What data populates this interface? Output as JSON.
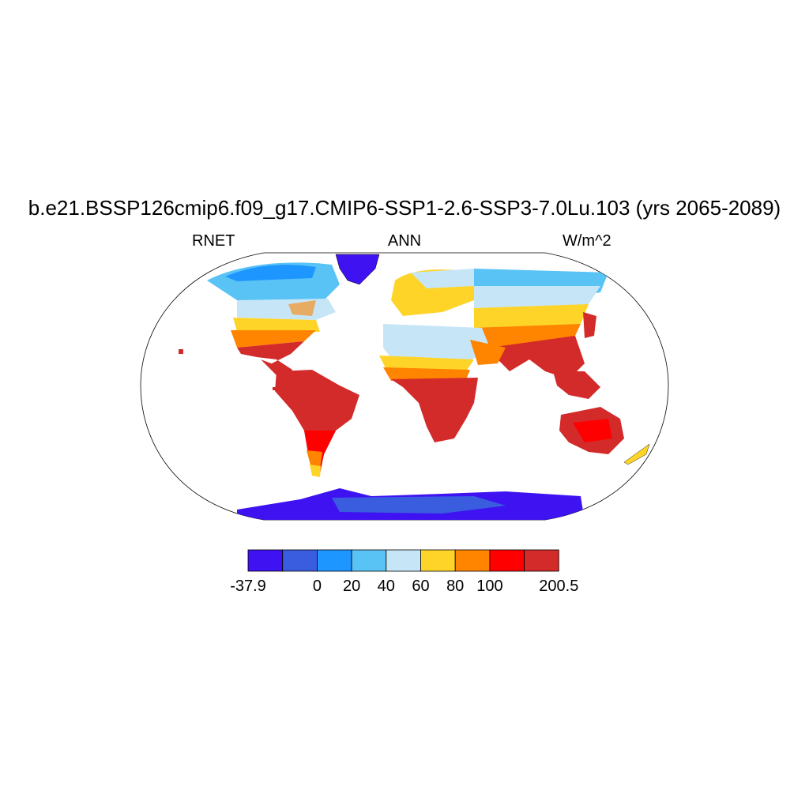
{
  "title": "b.e21.BSSP126cmip6.f09_g17.CMIP6-SSP1-2.6-SSP3-7.0Lu.103 (yrs 2065-2089)",
  "left_string": "RNET",
  "center_string": "ANN",
  "right_string": "W/m^2",
  "colorbar": {
    "colors": [
      "#3f12f2",
      "#3a5de0",
      "#1e96ff",
      "#5ac3f5",
      "#c6e6f7",
      "#ffd428",
      "#ff8400",
      "#ff0000",
      "#d32a2a"
    ],
    "labels": [
      "-37.9",
      "0",
      "20",
      "40",
      "60",
      "80",
      "100",
      "200.5"
    ],
    "label_boundary_index": [
      0,
      2,
      3,
      4,
      5,
      6,
      7,
      9
    ]
  },
  "landmasses": [
    {
      "name": "greenland",
      "color": "#3f12f2"
    },
    {
      "name": "antarctica",
      "color": "#3f12f2"
    }
  ]
}
